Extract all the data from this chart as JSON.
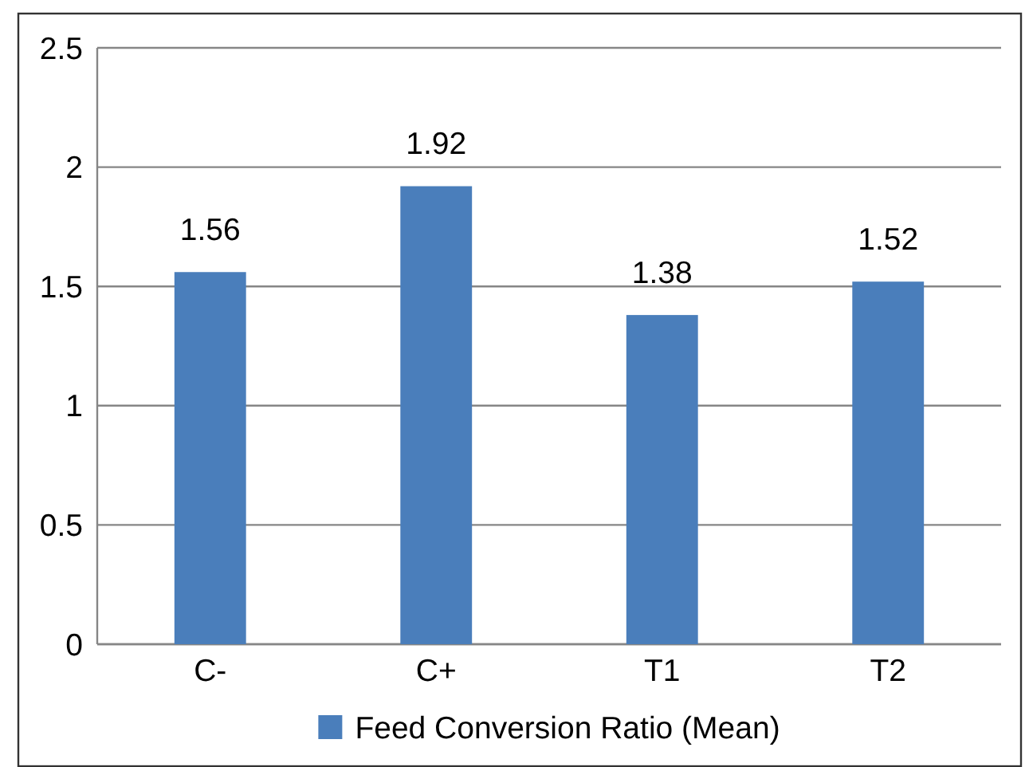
{
  "chart_data": {
    "type": "bar",
    "categories": [
      "C-",
      "C+",
      "T1",
      "T2"
    ],
    "series": [
      {
        "name": "Feed Conversion Ratio (Mean)",
        "color": "#4a7ebb",
        "values": [
          1.56,
          1.92,
          1.38,
          1.52
        ]
      }
    ],
    "ylim": [
      0,
      2.5
    ],
    "yticks": [
      0,
      0.5,
      1,
      1.5,
      2,
      2.5
    ],
    "grid": "y",
    "legend": "bottom",
    "data_labels": true
  }
}
